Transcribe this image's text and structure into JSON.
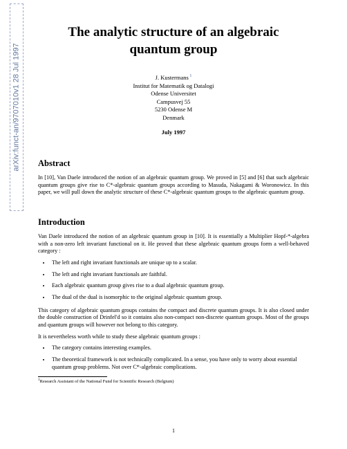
{
  "arxiv": "arXiv:funct-an/9707010v1  28 Jul 1997",
  "title_line1": "The analytic structure of an algebraic",
  "title_line2": "quantum group",
  "author": "J. Kustermans",
  "affiliation": {
    "line1": "Institut for Matematik og Datalogi",
    "line2": "Odense Universitet",
    "line3": "Campusvej 55",
    "line4": "5230 Odense M",
    "line5": "Denmark"
  },
  "date": "July 1997",
  "abstract_title": "Abstract",
  "abstract_body": "In [10], Van Daele introduced the notion of an algebraic quantum group. We proved in [5] and [6] that such algebraic quantum groups give rise to C*-algebraic quantum groups according to Masuda, Nakagami & Woronowicz. In this paper, we will pull down the analytic structure of these C*-algebraic quantum groups to the algebraic quantum group.",
  "introduction_title": "Introduction",
  "intro_p1": "Van Daele introduced the notion of an algebraic quantum group in [10]. It is essentially a Multiplier Hopf-*-algebra with a non-zero left invariant functional on it. He proved that these algebraic quantum groups form a well-behaved category :",
  "bullets1": {
    "b1": "The left and right invariant functionals are unique up to a scalar.",
    "b2": "The left and right invariant functionals are faithful.",
    "b3": "Each algebraic quantum group gives rise to a dual algebraic quantum group.",
    "b4": "The dual of the dual is isomorphic to the original algebraic quantum group."
  },
  "intro_p2": "This category of algebraic quantum groups contains the compact and discrete quantum groups. It is also closed under the double construction of Drinfel'd so it contains also non-compact non-discrete quantum groups. Most of the groups and quantum groups will however not belong to this category.",
  "intro_p3": "It is nevertheless worth while to study these algebraic quantum groups :",
  "bullets2": {
    "b1": "The category contains interesting examples.",
    "b2": "The theoretical framework is not technically complicated. In a sense, you have only to worry about essential quantum group problems. Not over C*-algebraic complications."
  },
  "footnote": "Research Assistant of the National Fund for Scientific Research (Belgium)",
  "page_number": "1"
}
